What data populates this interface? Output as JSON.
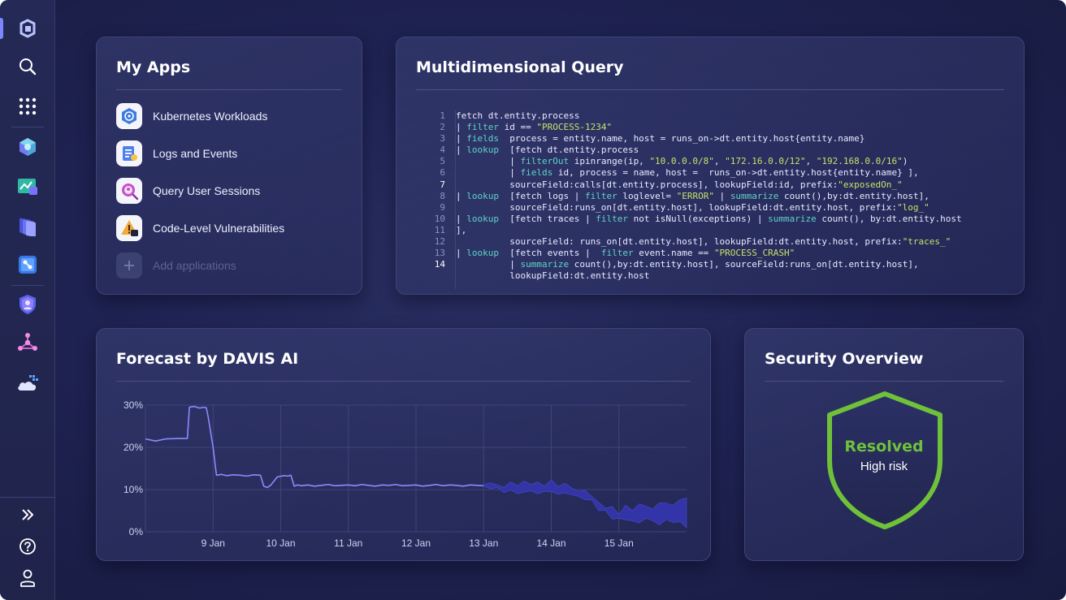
{
  "sidebar": {
    "top_icons": [
      "dynatrace-logo-icon",
      "search-icon",
      "apps-grid-icon"
    ],
    "app_icons": [
      "infrastructure-app-icon",
      "dashboards-app-icon",
      "logs-app-icon",
      "workflows-app-icon",
      "security-app-icon",
      "topology-app-icon",
      "cloud-app-icon"
    ],
    "bottom_icons": [
      "expand-icon",
      "help-icon",
      "user-icon"
    ]
  },
  "my_apps": {
    "title": "My Apps",
    "items": [
      {
        "label": "Kubernetes Workloads",
        "icon": "kubernetes-icon"
      },
      {
        "label": "Logs and Events",
        "icon": "logs-events-icon"
      },
      {
        "label": "Query User Sessions",
        "icon": "query-sessions-icon"
      },
      {
        "label": "Code-Level Vulnerabilities",
        "icon": "vulnerability-icon"
      }
    ],
    "add_label": "Add applications"
  },
  "query": {
    "title": "Multidimensional Query",
    "line_numbers": [
      "1",
      "2",
      "3",
      "4",
      "5",
      "6",
      "7",
      "8",
      "9",
      "10",
      "11",
      "12",
      "13",
      "14",
      "",
      ""
    ],
    "lines": [
      "fetch dt.entity.process",
      "| filter id == \"PROCESS-1234\"",
      "| fields  process = entity.name, host = runs_on->dt.entity.host{entity.name}",
      "| lookup  [fetch dt.entity.process",
      "          | filterOut ipinrange(ip, \"10.0.0.0/8\", \"172.16.0.0/12\", \"192.168.0.0/16\")",
      "          | fields id, process = name, host =  runs_on->dt.entity.host{entity.name} ],",
      "          sourceField:calls[dt.entity.process], lookupField:id, prefix:\"exposedOn_\"",
      "| lookup  [fetch logs | filter loglevel= \"ERROR\" | summarize count(),by:dt.entity.host],",
      "          sourceField:runs_on[dt.entity.host], lookupField:dt.entity.host, prefix:\"log_\"",
      "| lookup  [fetch traces | filter not isNull(exceptions) | summarize count(), by:dt.entity.host",
      "],",
      "          sourceField: runs_on[dt.entity.host], lookupField:dt.entity.host, prefix:\"traces_\"",
      "| lookup  [fetch events |  filter event.name == \"PROCESS_CRASH\"",
      "          | summarize count(),by:dt.entity.host], sourceField:runs_on[dt.entity.host],",
      "          lookupField:dt.entity.host"
    ]
  },
  "forecast": {
    "title": "Forecast by DAVIS AI"
  },
  "security": {
    "title": "Security Overview",
    "status": "Resolved",
    "risk": "High risk",
    "shield_color": "#6fc13a"
  },
  "chart_data": {
    "type": "line",
    "title": "Forecast by DAVIS AI",
    "x_tick_labels": [
      "9 Jan",
      "10 Jan",
      "11 Jan",
      "12 Jan",
      "13 Jan",
      "14 Jan",
      "15 Jan"
    ],
    "x_range_days": [
      8.0,
      16.0
    ],
    "y_tick_labels": [
      "30%",
      "20%",
      "10%",
      "0%"
    ],
    "ylim": [
      0,
      30
    ],
    "grid": true,
    "series": [
      {
        "line_color": "#8f88ff",
        "x": [
          8.0,
          8.15,
          8.3,
          8.5,
          8.62,
          8.65,
          8.72,
          8.8,
          8.86,
          8.9,
          8.93,
          9.0,
          9.05,
          9.12,
          9.2,
          9.3,
          9.4,
          9.5,
          9.6,
          9.7,
          9.75,
          9.8,
          9.85,
          9.9,
          9.95,
          10.05,
          10.1,
          10.15,
          10.2,
          10.25,
          10.3,
          10.4,
          10.5,
          10.6,
          10.7,
          10.8,
          10.9,
          11.0,
          11.1,
          11.2,
          11.3,
          11.4,
          11.5,
          11.6,
          11.7,
          11.8,
          11.9,
          12.0,
          12.1,
          12.2,
          12.3,
          12.4,
          12.5,
          12.6,
          12.7,
          12.8,
          12.9,
          13.0
        ],
        "y": [
          22,
          21.5,
          22,
          22.1,
          22.1,
          29.5,
          29.7,
          29.3,
          29.5,
          29.4,
          27,
          20,
          13.4,
          13.6,
          13.3,
          13.5,
          13.4,
          13.2,
          13.5,
          13.4,
          10.8,
          10.5,
          11,
          12,
          13,
          13.3,
          13.2,
          13.4,
          10.8,
          11.1,
          10.9,
          11.1,
          10.8,
          11,
          11.2,
          10.9,
          11,
          11.1,
          10.9,
          11.2,
          11,
          10.8,
          11.1,
          11,
          11.2,
          10.9,
          11,
          11.1,
          10.8,
          11,
          11.2,
          10.9,
          11.1,
          11,
          10.8,
          11.1,
          11,
          10.9
        ]
      },
      {
        "band_color": "#3334a8",
        "x": [
          13.0,
          13.1,
          13.2,
          13.3,
          13.4,
          13.5,
          13.6,
          13.7,
          13.8,
          13.9,
          14.0,
          14.1,
          14.2,
          14.3,
          14.4,
          14.5,
          14.6,
          14.7,
          14.8,
          14.9,
          15.0,
          15.1,
          15.2,
          15.3,
          15.4,
          15.5,
          15.6,
          15.7,
          15.8,
          15.9,
          16.0
        ],
        "upper": [
          11.2,
          11.6,
          11.1,
          10.5,
          11.8,
          10.9,
          12.0,
          11.2,
          11.8,
          10.8,
          12.3,
          10.7,
          11.5,
          10.4,
          9.6,
          9.8,
          8.4,
          7.0,
          5.6,
          6.0,
          4.1,
          6.3,
          5.0,
          6.6,
          6.1,
          5.4,
          6.9,
          6.8,
          6.3,
          7.6,
          8.0
        ],
        "lower": [
          10.8,
          10.2,
          10.5,
          9.3,
          9.9,
          9.0,
          9.4,
          9.7,
          9.0,
          9.6,
          9.5,
          8.9,
          9.2,
          8.8,
          8.4,
          7.6,
          7.5,
          5.0,
          5.1,
          3.0,
          3.2,
          2.8,
          2.6,
          2.1,
          3.2,
          2.6,
          1.6,
          2.9,
          2.2,
          2.4,
          1.0
        ]
      }
    ]
  }
}
